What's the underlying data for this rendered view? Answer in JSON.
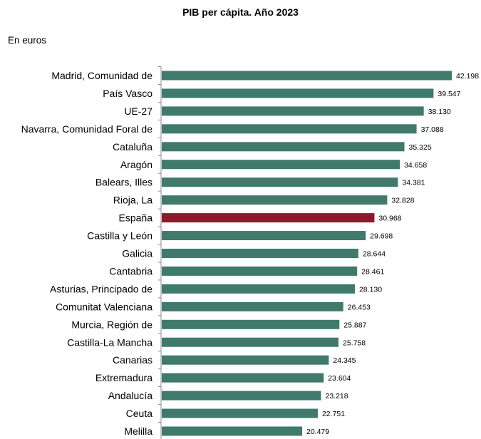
{
  "chart_data": {
    "type": "bar",
    "orientation": "horizontal",
    "title": "PIB per cápita. Año 2023",
    "unit_note": "En euros",
    "categories": [
      "Madrid, Comunidad de",
      "País Vasco",
      "UE-27",
      "Navarra, Comunidad Foral de",
      "Cataluña",
      "Aragón",
      "Balears, Illes",
      "Rioja, La",
      "España",
      "Castilla y León",
      "Galicia",
      "Cantabria",
      "Asturias, Principado de",
      "Comunitat Valenciana",
      "Murcia, Región de",
      "Castilla-La Mancha",
      "Canarias",
      "Extremadura",
      "Andalucía",
      "Ceuta",
      "Melilla"
    ],
    "values": [
      42198,
      39547,
      38130,
      37088,
      35325,
      34658,
      34381,
      32828,
      30968,
      29698,
      28644,
      28461,
      28130,
      26453,
      25887,
      25758,
      24345,
      23604,
      23218,
      22751,
      20479
    ],
    "value_labels": [
      "42.198",
      "39.547",
      "38.130",
      "37.088",
      "35.325",
      "34.658",
      "34.381",
      "32.828",
      "30.968",
      "29.698",
      "28.644",
      "28.461",
      "28.130",
      "26.453",
      "25.887",
      "25.758",
      "24.345",
      "23.604",
      "23.218",
      "22.751",
      "20.479"
    ],
    "xlim": [
      0,
      42198
    ],
    "grid": false,
    "colors": {
      "default": "#3f7a6b",
      "highlight": "#8b1a2b"
    },
    "highlight_category": "España"
  }
}
